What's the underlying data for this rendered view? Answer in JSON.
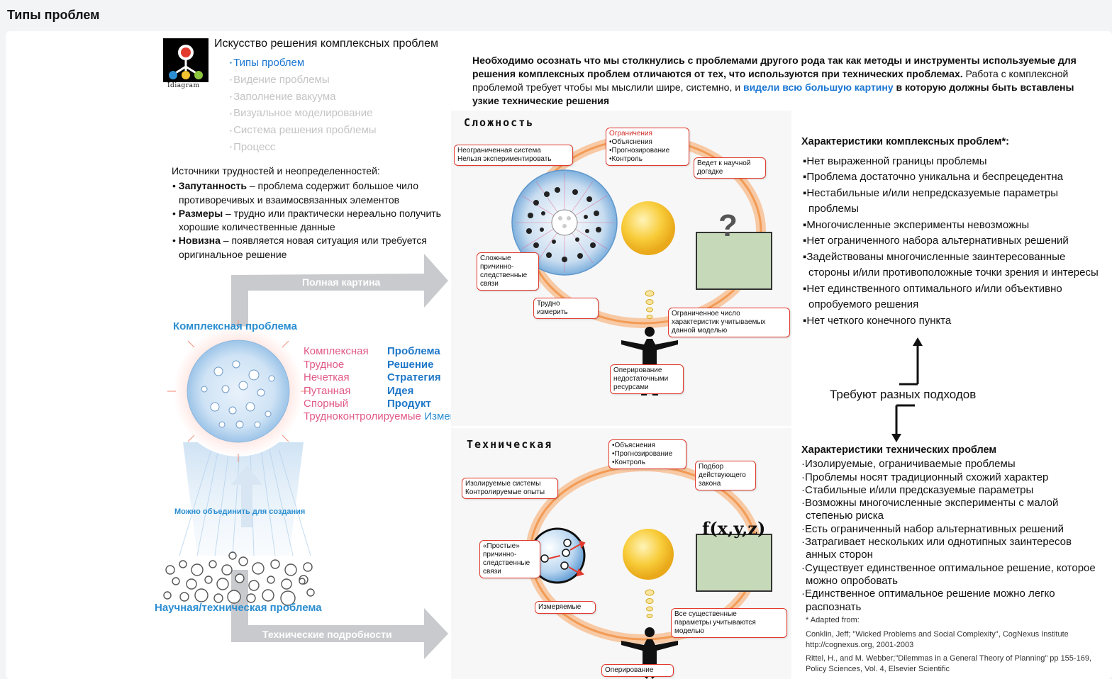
{
  "page": {
    "title": "Типы проблем"
  },
  "brand": {
    "title": "Искусство решения комплексных проблем",
    "logo_label": "Idiagram"
  },
  "nav": {
    "items": [
      {
        "label": "Типы проблем"
      },
      {
        "label": "Видение проблемы"
      },
      {
        "label": "Заполнение вакуума"
      },
      {
        "label": "Визуальное моделирование"
      },
      {
        "label": "Система решения проблемы"
      },
      {
        "label": "Процесс"
      }
    ]
  },
  "intro": {
    "p1_bold": "Необходимо осознать что мы столкнулись с проблемами другого рода так как методы и инструменты используемые для решения комплексных проблем отличаются от тех, что используются при технических проблемах.",
    "p2": " Работа с комплексной проблемой требует чтобы мы  мыслили шире, системно, и ",
    "p3_hl": "видели всю большую картину",
    "p4_bold": " в которую должны быть вставлены узкие технические решения"
  },
  "sources": {
    "heading": "Источники трудностей и неопределенностей:",
    "items": [
      {
        "term": "Запутанность",
        "text": " – проблема содержит большое чило противоречивых и взаимосвязанных элементов"
      },
      {
        "term": "Размеры",
        "text": " – трудно или практически нереально получить хорошие количественные данные"
      },
      {
        "term": "Новизна",
        "text": " – появляется новая ситуация или требуется оригинальное решение"
      }
    ]
  },
  "left_diagram": {
    "arrow_top": "Полная картина",
    "complex_label": "Комплексная проблема",
    "pink_words": [
      "Комплексная",
      "Трудное",
      "Нечеткая",
      "Путанная",
      "Спорный",
      "Трудноконтролируемые"
    ],
    "blue_words": [
      "Проблема",
      "Решение",
      "Стратегия",
      "Идея",
      "Продукт",
      "Изменения"
    ],
    "combine_label": "Можно объединить для создания",
    "tech_label": "Научная/техническая проблема",
    "arrow_bottom": "Технические подробности"
  },
  "complexity": {
    "title": "Сложность",
    "callouts": {
      "unbounded": "Неограниченная система\nНельзя экспериментировать",
      "limits_title": "Ограничения",
      "limits_items": "•Объяснения\n•Прогнозирование\n•Контроль",
      "scientific": "Ведет к научной\nдогадке",
      "causal": "Сложные\nпричинно-\nследственные\nсвязи",
      "hard_measure": "Трудно\nизмерить",
      "limited_number": "Ограниченное число\nхарактеристик учитываемых\nданной моделью",
      "insufficient": "Оперирование\nнедостаточными\nресурсами"
    },
    "question_mark": "?"
  },
  "technical": {
    "title": "Техническая",
    "callouts": {
      "explain": "•Объяснения\n•Прогнозирование\n•Контроль",
      "isolated": "Изолируемые системы\nКонтролируемые опыты",
      "law": "Подбор\nдействующего\nзакона",
      "simple": "«Простые»\nпричинно-\nследственные\nсвязи",
      "measurable": "Измеряемые",
      "all_existing": "Все существенные\nпараметры учитываются\nмоделью",
      "operating": "Оперирование"
    },
    "formula": "f(x,y,z)"
  },
  "complex_chars": {
    "heading": "Характеристики комплексных проблем*:",
    "items": [
      "Нет выраженной границы проблемы",
      "Проблема достаточно уникальна и беспрецедентна",
      "Нестабильные и/или непредсказуемые параметры проблемы",
      "Многочисленные эксперименты невозможны",
      "Нет ограниченного набора альтернативных решений",
      "Задействованы многочисленные заинтересованные стороны и/или противоположные точки зрения и интересы",
      "Нет единственного оптимального и/или объективно опробуемого решения",
      "Нет четкого конечного пункта"
    ]
  },
  "approaches": {
    "label": "Требуют разных подходов"
  },
  "tech_chars": {
    "heading": "Характеристики технических проблем",
    "items": [
      "Изолируемые, ограничиваемые проблемы",
      "Проблемы носят традиционный схожий характер",
      "Стабильные и/или предсказуемые параметры",
      "Возможны многочисленные эксперименты с малой степенью риска",
      "Есть ограниченный набор альтернативных решений",
      "Затрагивает нескольких или однотипных заинтересов анных сторон",
      "Существует единственное оптимальное решение, которое можно опробовать",
      "Единственное оптимальное решение можно легко распознать"
    ]
  },
  "refs": {
    "adapted": "* Adapted from:",
    "ref1": "Conklin, Jeff; \"Wicked Problems and Social Complexity\", CogNexus Institute http://cognexus.org,  2001-2003",
    "ref2": "Rittel, H., and M. Webber;\"Dilemmas in a General Theory of Planning\" pp 155-169, Policy Sciences, Vol. 4, Elsevier Scientific"
  }
}
